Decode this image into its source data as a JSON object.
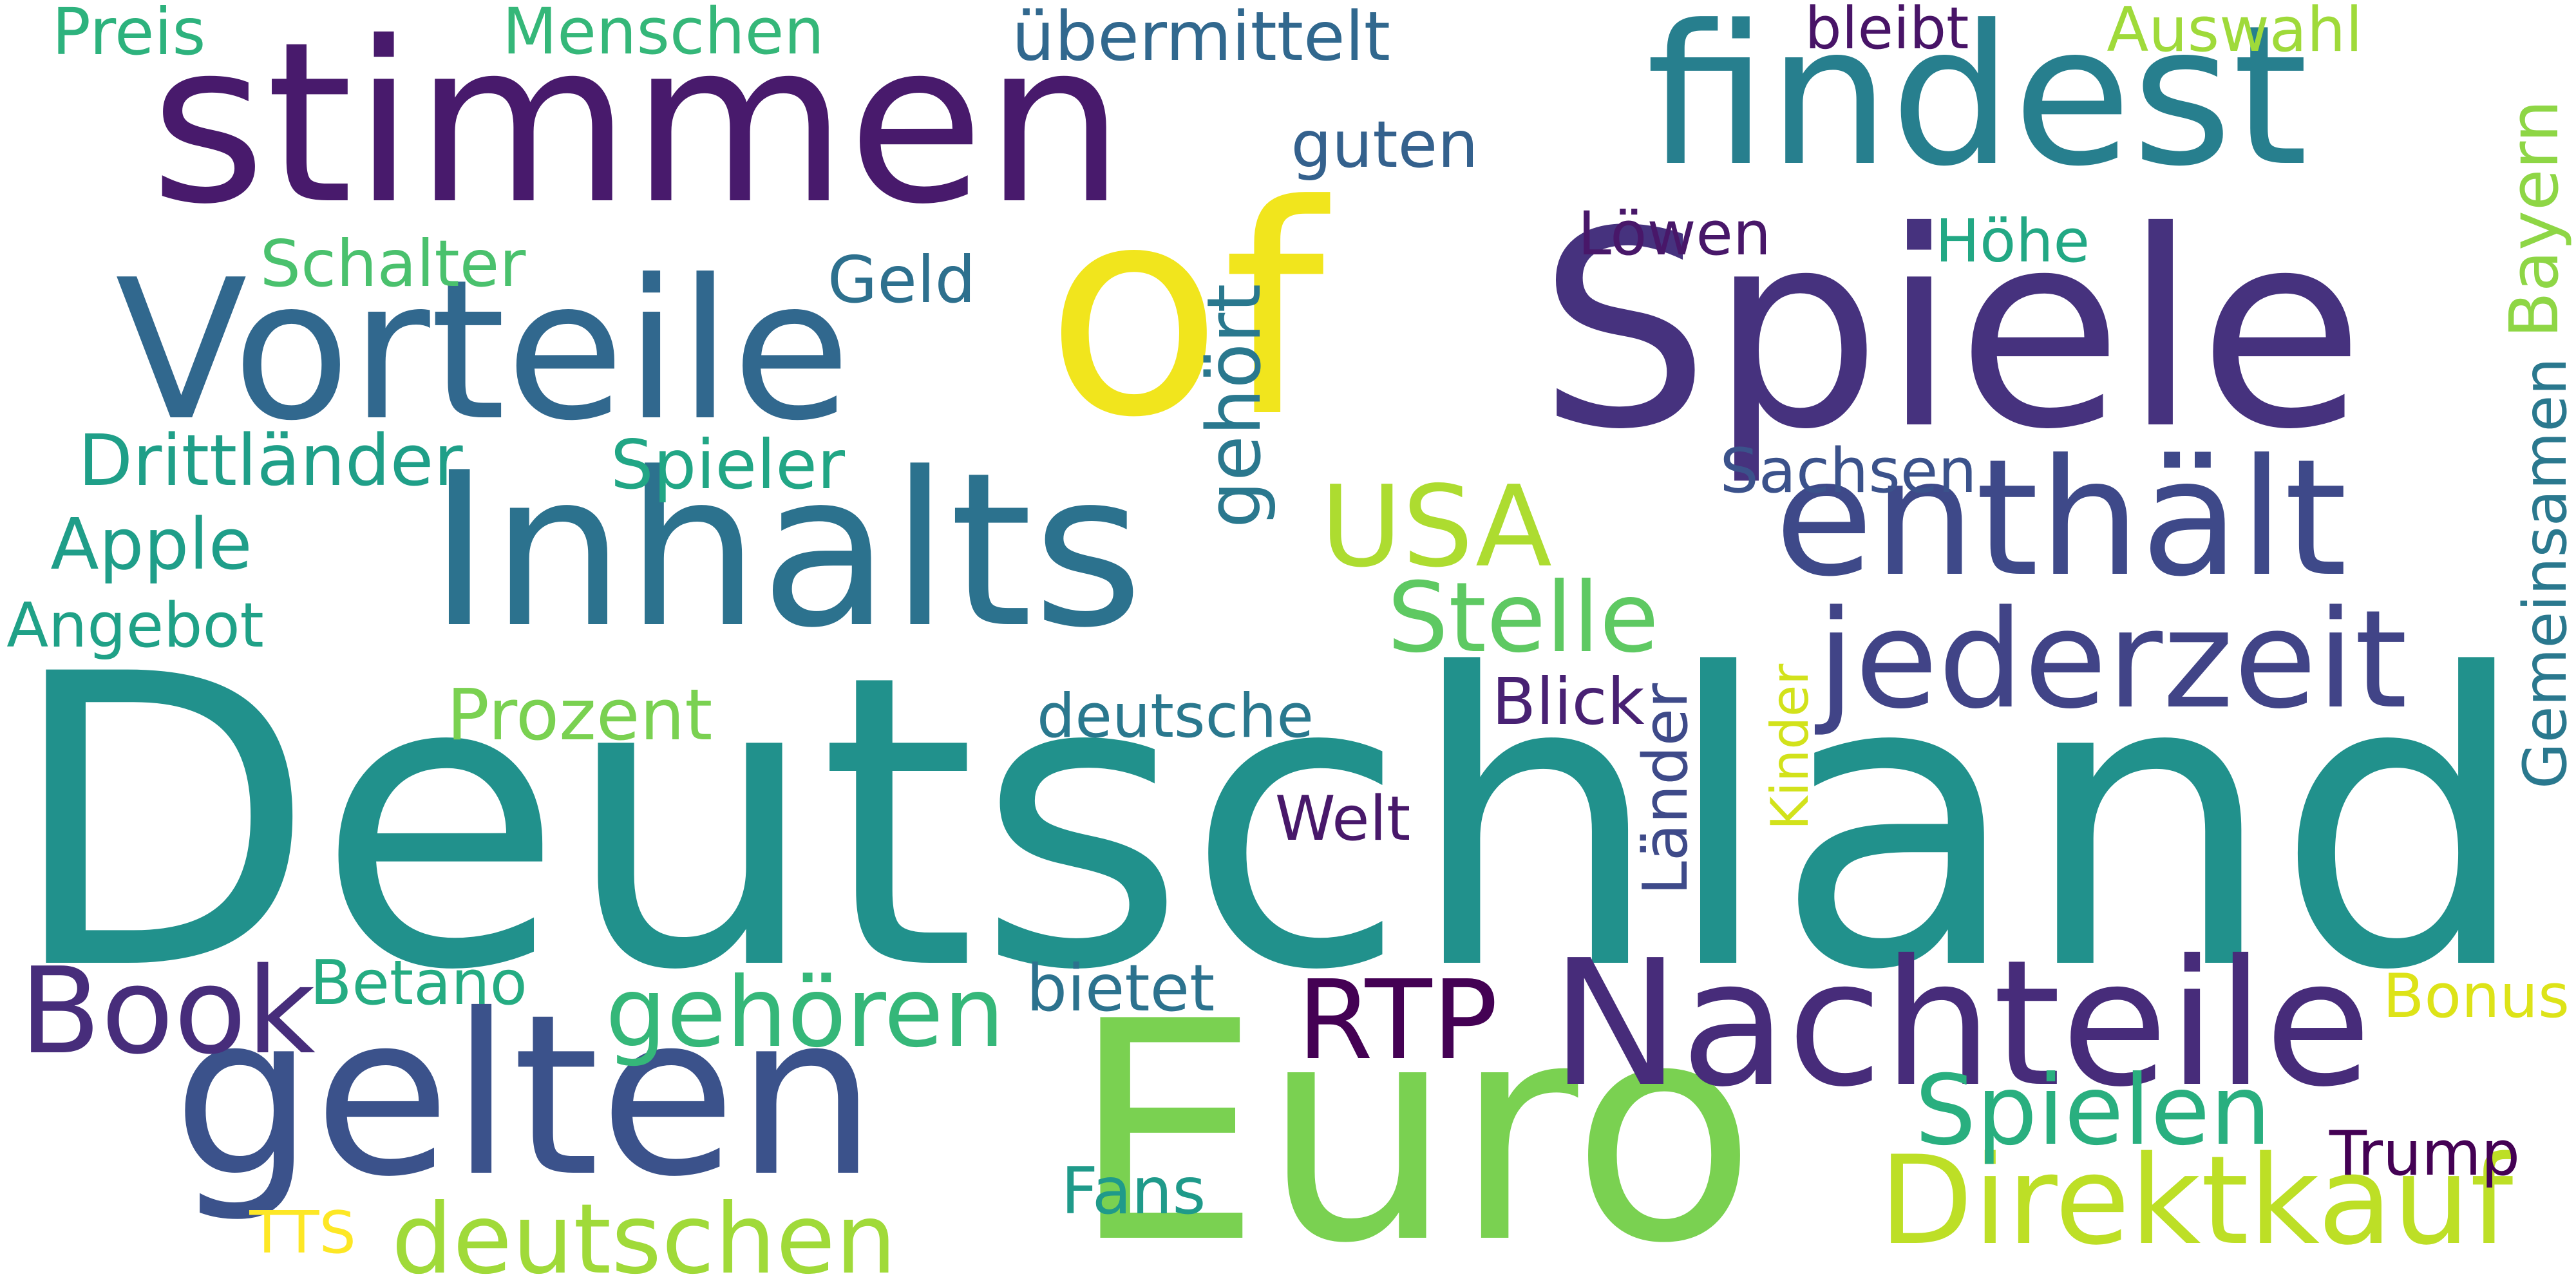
{
  "words": [
    {
      "text": "Deutschland",
      "color": "#21918c"
    },
    {
      "text": "Euro",
      "color": "#7ad151"
    },
    {
      "text": "Inhalts",
      "color": "#2c728e"
    },
    {
      "text": "Spiele",
      "color": "#46327e"
    },
    {
      "text": "stimmen",
      "color": "#481a6c"
    },
    {
      "text": "findest",
      "color": "#277f8e"
    },
    {
      "text": "of",
      "color": "#f1e51d"
    },
    {
      "text": "Vorteile",
      "color": "#31688e"
    },
    {
      "text": "enthält",
      "color": "#3e4989"
    },
    {
      "text": "gelten",
      "color": "#3b528b"
    },
    {
      "text": "Nachteile",
      "color": "#472c7a"
    },
    {
      "text": "jederzeit",
      "color": "#414487"
    },
    {
      "text": "Direktkauf",
      "color": "#bddf26"
    },
    {
      "text": "Book",
      "color": "#472d7b"
    },
    {
      "text": "USA",
      "color": "#addc30"
    },
    {
      "text": "RTP",
      "color": "#440154"
    },
    {
      "text": "Stelle",
      "color": "#5ec962"
    },
    {
      "text": "gehören",
      "color": "#35b779"
    },
    {
      "text": "Spielen",
      "color": "#29af7f"
    },
    {
      "text": "deutschen",
      "color": "#a0da39"
    },
    {
      "text": "Menschen",
      "color": "#35b779"
    },
    {
      "text": "Preis",
      "color": "#2db27d"
    },
    {
      "text": "übermittelt",
      "color": "#31688e"
    },
    {
      "text": "bleibt",
      "color": "#481467"
    },
    {
      "text": "Auswahl",
      "color": "#9fda3a"
    },
    {
      "text": "guten",
      "color": "#34618d"
    },
    {
      "text": "Schalter",
      "color": "#4ac16d"
    },
    {
      "text": "Geld",
      "color": "#2d708e"
    },
    {
      "text": "Löwen",
      "color": "#481769"
    },
    {
      "text": "Höhe",
      "color": "#22a884"
    },
    {
      "text": "Bayern",
      "color": "#8ed645"
    },
    {
      "text": "Drittländer",
      "color": "#1f9f88"
    },
    {
      "text": "Spieler",
      "color": "#21a685"
    },
    {
      "text": "gehört",
      "color": "#2a788e"
    },
    {
      "text": "Sachsen",
      "color": "#3b528b"
    },
    {
      "text": "Gemeinsamen",
      "color": "#2a788e"
    },
    {
      "text": "Apple",
      "color": "#1f9e89"
    },
    {
      "text": "Angebot",
      "color": "#1fa187"
    },
    {
      "text": "Prozent",
      "color": "#7ad151"
    },
    {
      "text": "deutsche",
      "color": "#2a788e"
    },
    {
      "text": "Blick",
      "color": "#482173"
    },
    {
      "text": "Welt",
      "color": "#48186a"
    },
    {
      "text": "Kinder",
      "color": "#d2e21b"
    },
    {
      "text": "Länder",
      "color": "#3e4a89"
    },
    {
      "text": "Betano",
      "color": "#25ac82"
    },
    {
      "text": "bietet",
      "color": "#2c728e"
    },
    {
      "text": "Bonus",
      "color": "#dde318"
    },
    {
      "text": "Trump",
      "color": "#440154"
    },
    {
      "text": "Fans",
      "color": "#1f9a8a"
    },
    {
      "text": "TTS",
      "color": "#fde725"
    }
  ]
}
